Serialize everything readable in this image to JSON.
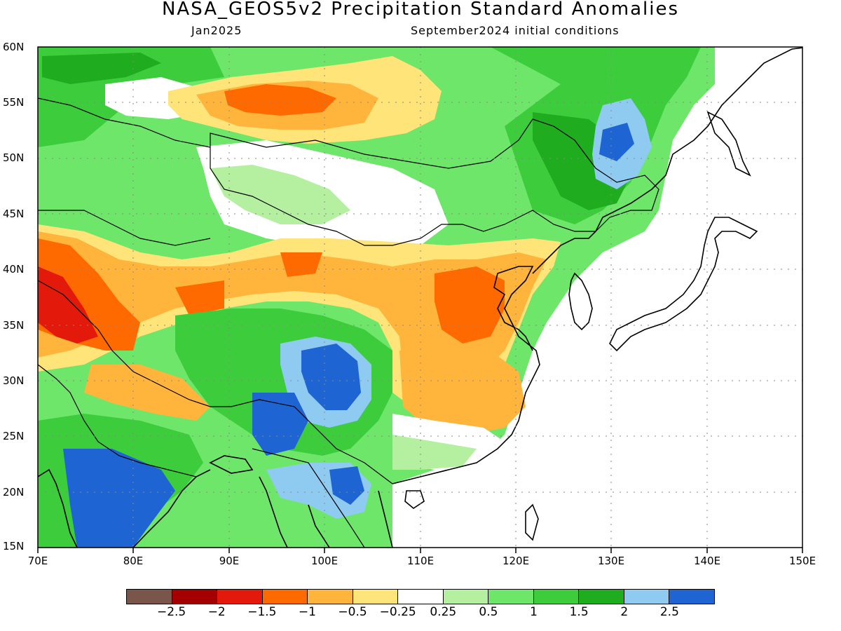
{
  "title": "NASA_GEOS5v2 Precipitation Standard Anomalies",
  "subtitle_left": "Jan2025",
  "subtitle_right": "September2024 initial conditions",
  "map": {
    "lon_range": [
      70,
      150
    ],
    "lat_range": [
      15,
      60
    ],
    "lat_labels": [
      "60N",
      "55N",
      "50N",
      "45N",
      "40N",
      "35N",
      "30N",
      "25N",
      "20N",
      "15N"
    ],
    "lon_labels": [
      "70E",
      "80E",
      "90E",
      "100E",
      "110E",
      "120E",
      "130E",
      "140E",
      "150E"
    ],
    "gridlines": "dotted"
  },
  "colorbar": {
    "colors": [
      "#7a554a",
      "#a50000",
      "#e31a0b",
      "#ff6a00",
      "#ffb43c",
      "#ffe47a",
      "#ffffff",
      "#b4f0a0",
      "#6ee66a",
      "#3ccc3c",
      "#1fac1f",
      "#8fcbf0",
      "#1e64d2"
    ],
    "labels": [
      "−2.5",
      "−2",
      "−1.5",
      "−1",
      "−0.5",
      "−0.25",
      "0.25",
      "0.5",
      "1",
      "1.5",
      "2",
      "2.5"
    ]
  }
}
